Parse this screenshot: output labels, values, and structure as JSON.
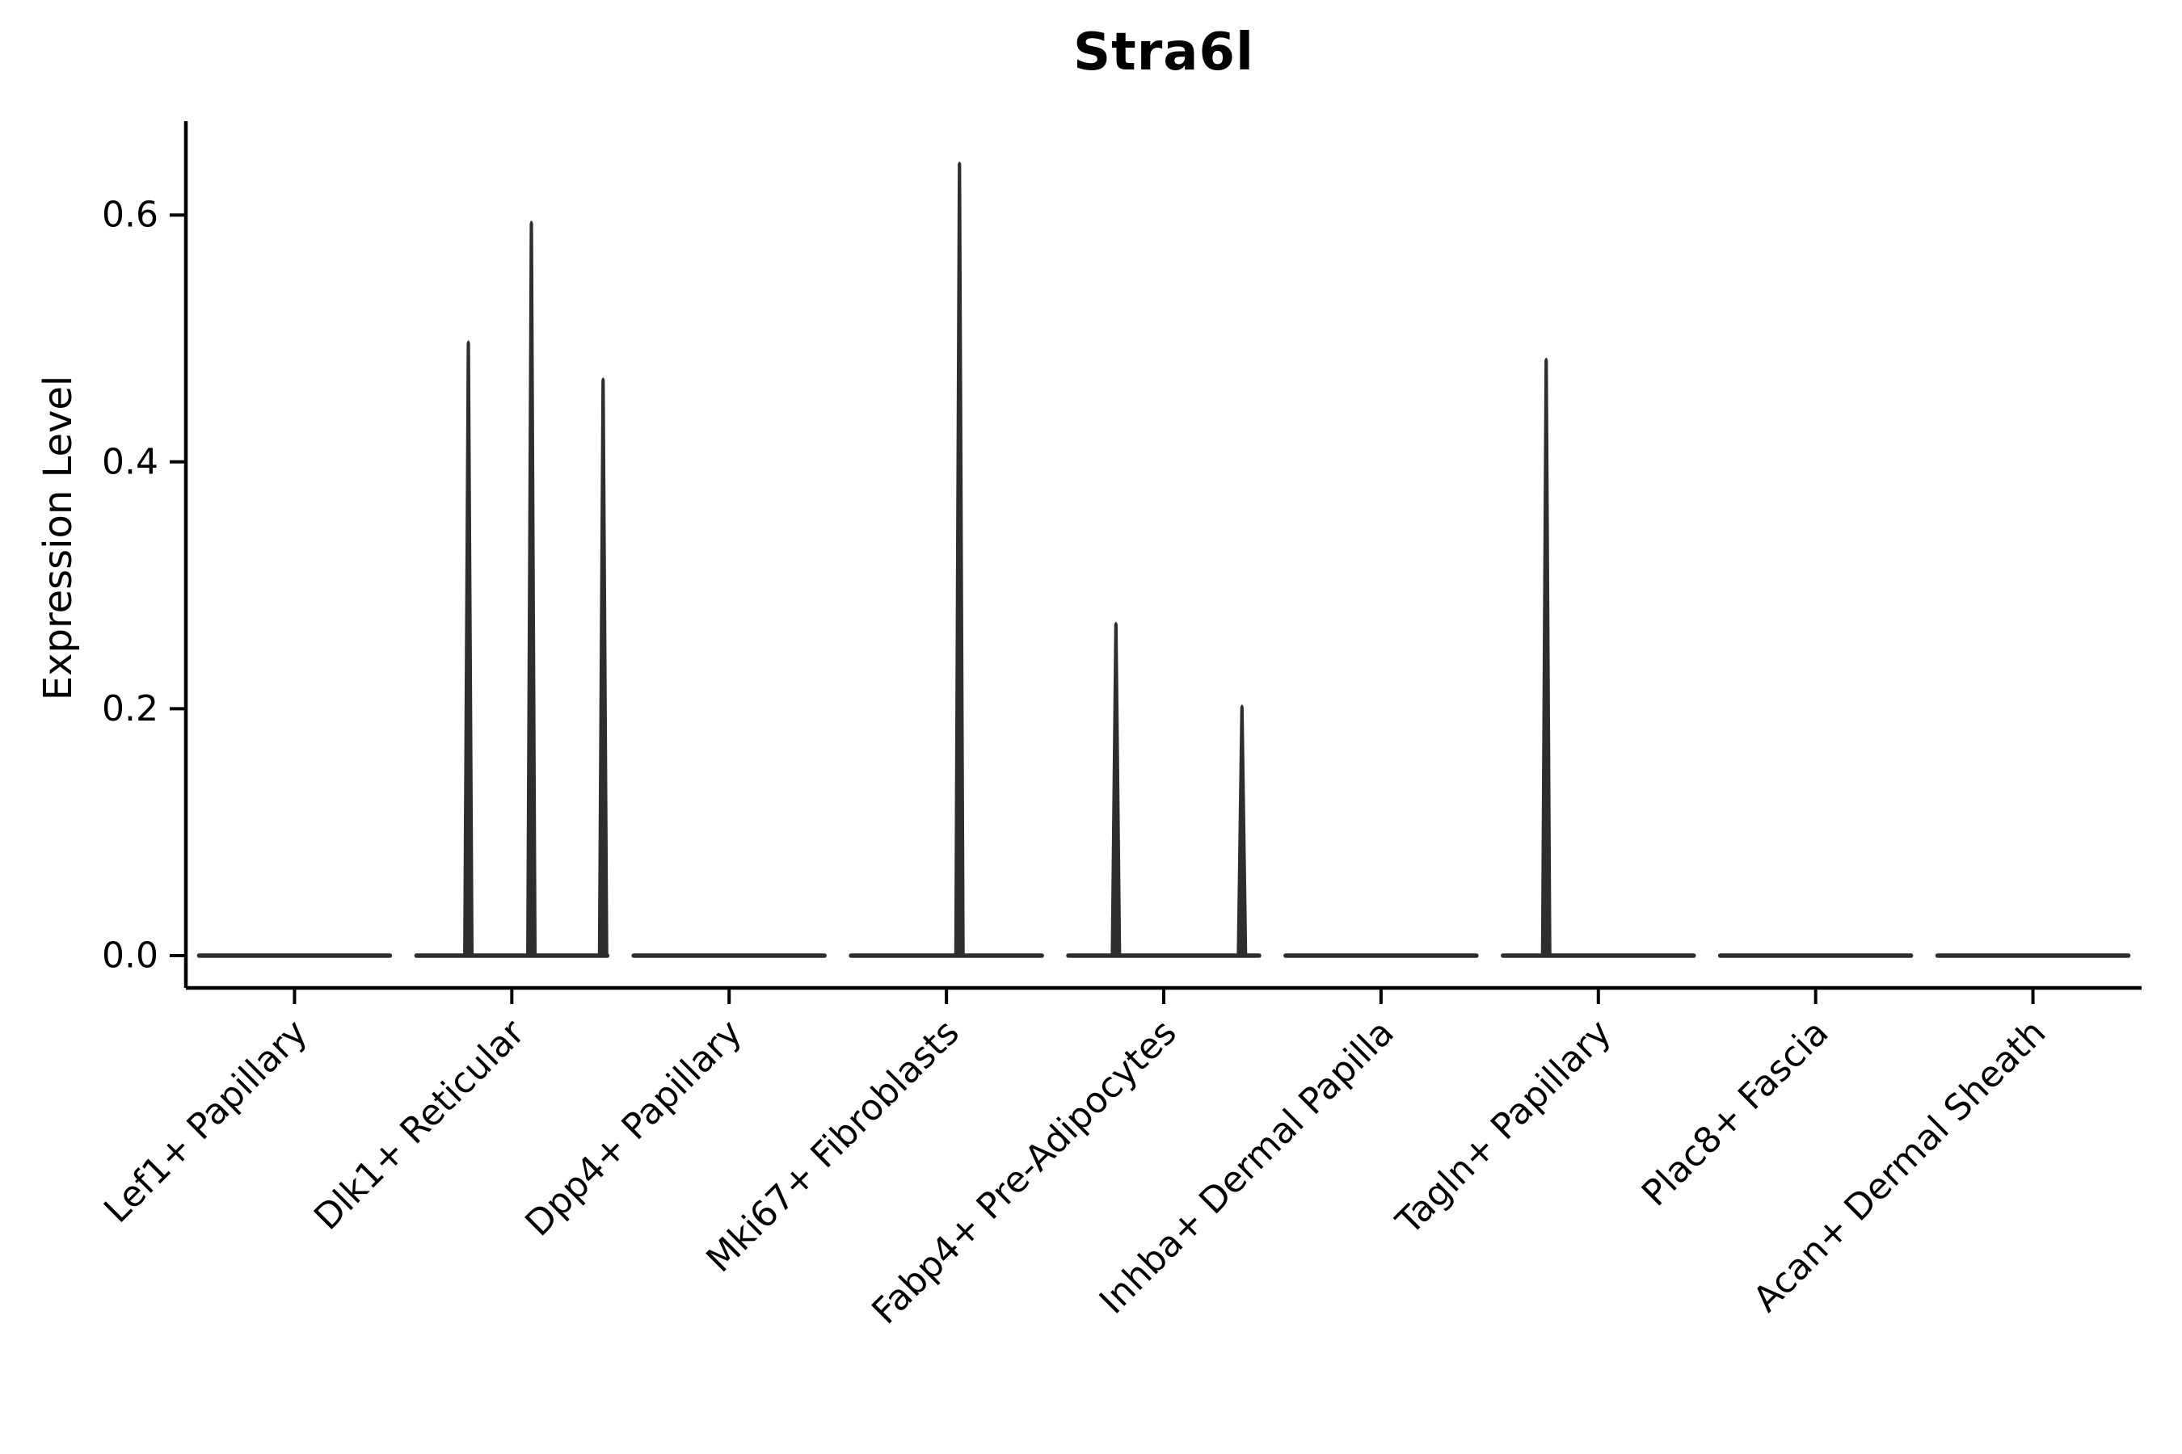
{
  "chart_data": {
    "type": "violin",
    "title": "Stra6l",
    "ylabel": "Expression Level",
    "xlabel": "",
    "ylim": [
      -0.026,
      0.676
    ],
    "yticks": [
      0.0,
      0.2,
      0.4,
      0.6
    ],
    "ytick_labels": [
      "0.0",
      "0.2",
      "0.4",
      "0.6"
    ],
    "grid": false,
    "legend": "none",
    "violin_color": "#2e2e2e",
    "axis_color": "#000000",
    "categories": [
      "Lef1+ Papillary",
      "Dlk1+ Reticular",
      "Dpp4+ Papillary",
      "Mki67+ Fibroblasts",
      "Fabp4+ Pre-Adipocytes",
      "Inhba+ Dermal Papilla",
      "Tagln+ Papillary",
      "Plac8+ Fascia",
      "Acan+ Dermal Sheath"
    ],
    "violins": [
      {
        "category": "Lef1+ Papillary",
        "baseline": 0.0,
        "spikes": []
      },
      {
        "category": "Dlk1+ Reticular",
        "baseline": 0.0,
        "spikes": [
          {
            "value": 0.5,
            "offset": -0.2
          },
          {
            "value": 0.597,
            "offset": 0.09
          },
          {
            "value": 0.47,
            "offset": 0.42
          }
        ]
      },
      {
        "category": "Dpp4+ Papillary",
        "baseline": 0.0,
        "spikes": []
      },
      {
        "category": "Mki67+ Fibroblasts",
        "baseline": 0.0,
        "spikes": [
          {
            "value": 0.645,
            "offset": 0.06
          }
        ]
      },
      {
        "category": "Fabp4+ Pre-Adipocytes",
        "baseline": 0.0,
        "spikes": [
          {
            "value": 0.272,
            "offset": -0.22
          },
          {
            "value": 0.205,
            "offset": 0.36
          }
        ]
      },
      {
        "category": "Inhba+ Dermal Papilla",
        "baseline": 0.0,
        "spikes": []
      },
      {
        "category": "Tagln+ Papillary",
        "baseline": 0.0,
        "spikes": [
          {
            "value": 0.486,
            "offset": -0.24
          }
        ]
      },
      {
        "category": "Plac8+ Fascia",
        "baseline": 0.0,
        "spikes": []
      },
      {
        "category": "Acan+ Dermal Sheath",
        "baseline": 0.0,
        "spikes": []
      }
    ]
  }
}
